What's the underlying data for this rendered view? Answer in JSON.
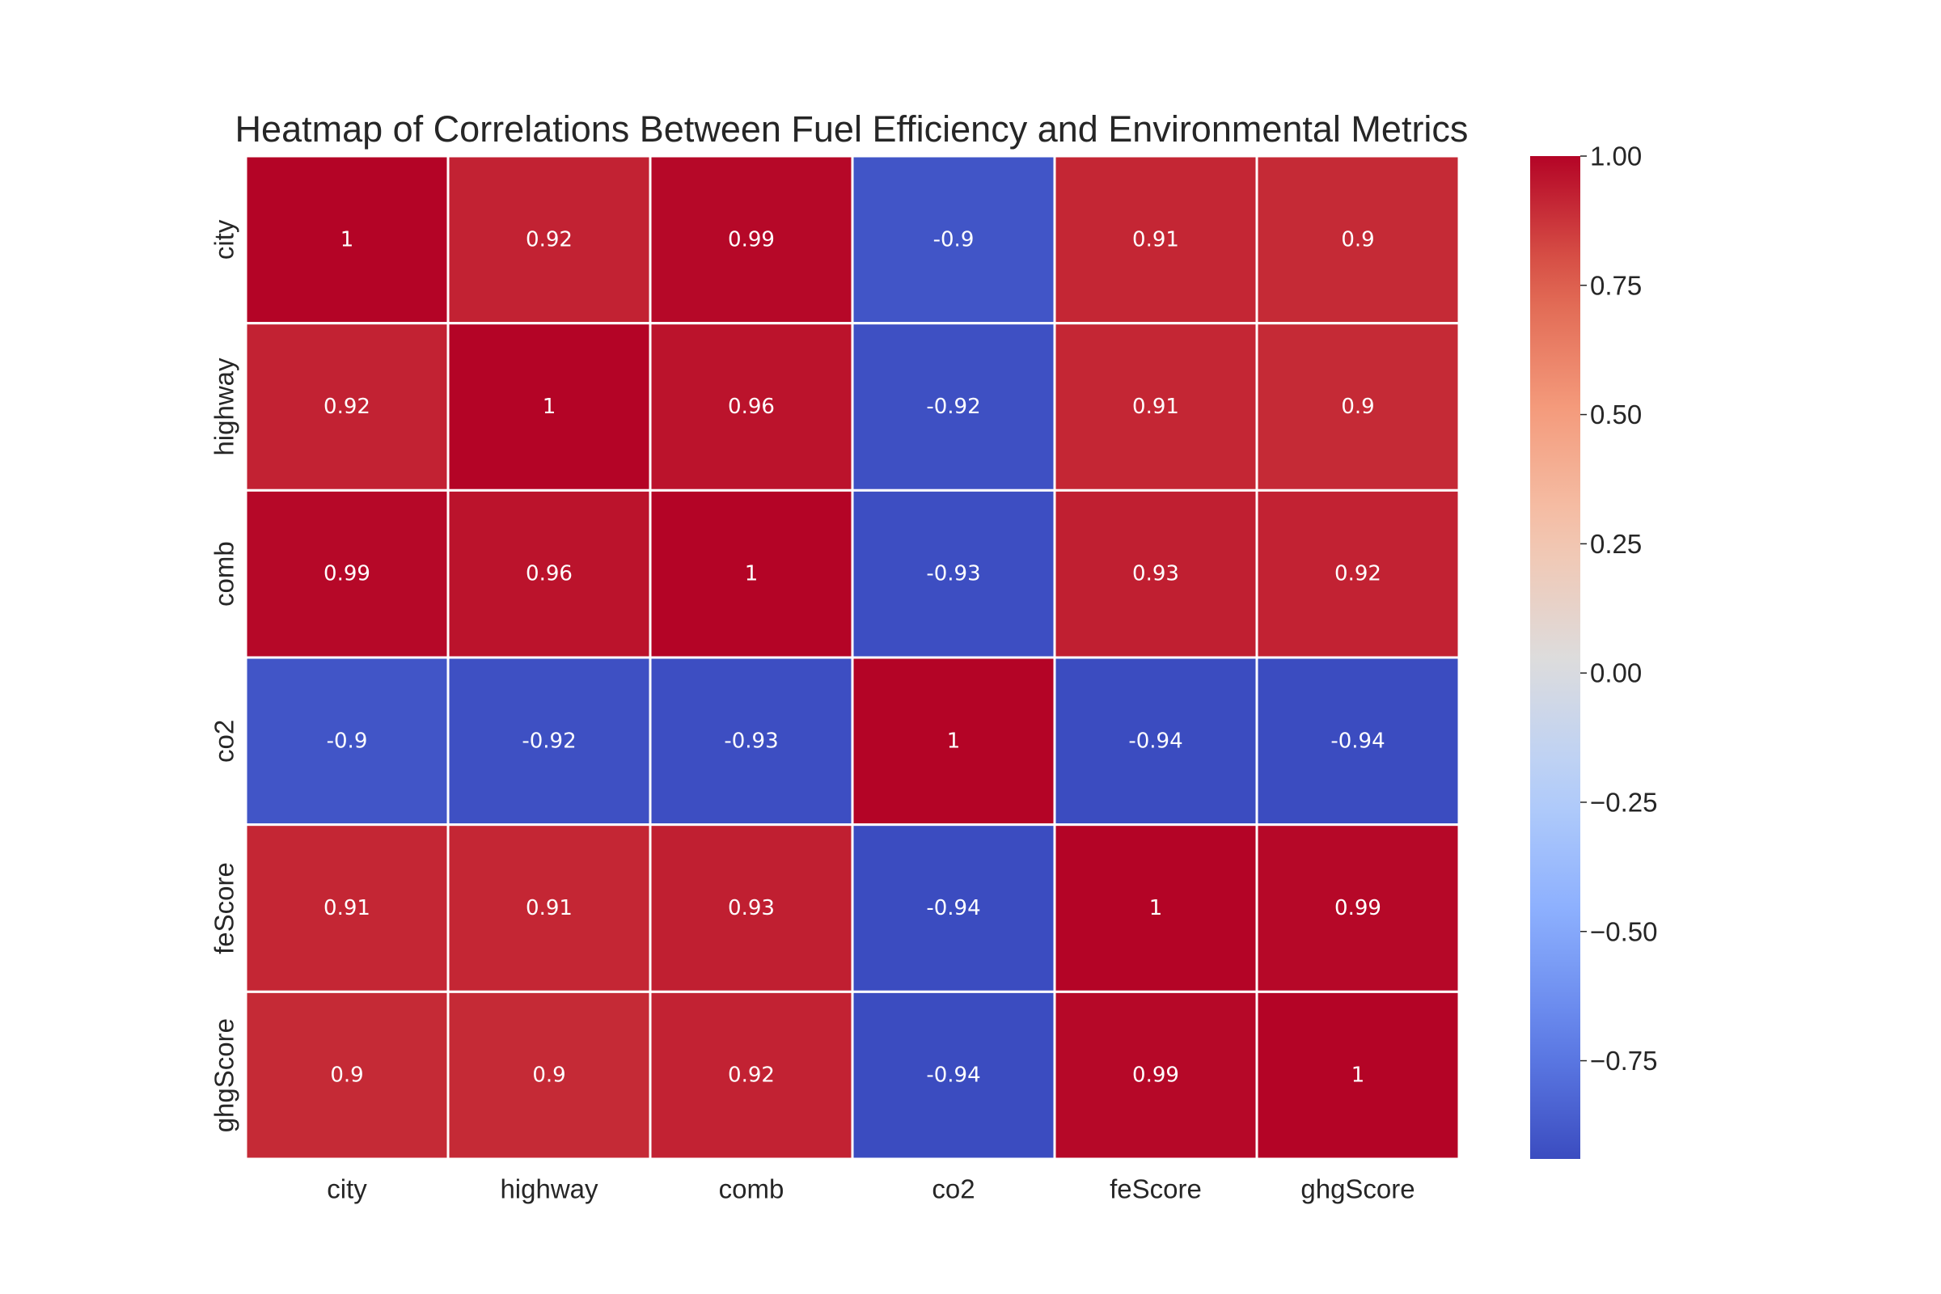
{
  "chart_data": {
    "type": "heatmap",
    "title": "Heatmap of Correlations Between Fuel Efficiency and Environmental Metrics",
    "rows": [
      "city",
      "highway",
      "comb",
      "co2",
      "feScore",
      "ghgScore"
    ],
    "columns": [
      "city",
      "highway",
      "comb",
      "co2",
      "feScore",
      "ghgScore"
    ],
    "values": [
      [
        1,
        0.92,
        0.99,
        -0.9,
        0.91,
        0.9
      ],
      [
        0.92,
        1,
        0.96,
        -0.92,
        0.91,
        0.9
      ],
      [
        0.99,
        0.96,
        1,
        -0.93,
        0.93,
        0.92
      ],
      [
        -0.9,
        -0.92,
        -0.93,
        1,
        -0.94,
        -0.94
      ],
      [
        0.91,
        0.91,
        0.93,
        -0.94,
        1,
        0.99
      ],
      [
        0.9,
        0.9,
        0.92,
        -0.94,
        0.99,
        1
      ]
    ],
    "value_labels": [
      [
        "1",
        "0.92",
        "0.99",
        "-0.9",
        "0.91",
        "0.9"
      ],
      [
        "0.92",
        "1",
        "0.96",
        "-0.92",
        "0.91",
        "0.9"
      ],
      [
        "0.99",
        "0.96",
        "1",
        "-0.93",
        "0.93",
        "0.92"
      ],
      [
        "-0.9",
        "-0.92",
        "-0.93",
        "1",
        "-0.94",
        "-0.94"
      ],
      [
        "0.91",
        "0.91",
        "0.93",
        "-0.94",
        "1",
        "0.99"
      ],
      [
        "0.9",
        "0.9",
        "0.92",
        "-0.94",
        "0.99",
        "1"
      ]
    ],
    "colormap": "coolwarm",
    "colorbar": {
      "range": [
        -0.94,
        1.0
      ],
      "ticks": [
        1.0,
        0.75,
        0.5,
        0.25,
        0.0,
        -0.25,
        -0.5,
        -0.75
      ],
      "tick_labels": [
        "1.00",
        "0.75",
        "0.50",
        "0.25",
        "0.00",
        "−0.25",
        "−0.50",
        "−0.75"
      ]
    },
    "grid": true,
    "grid_color": "#ffffff"
  }
}
